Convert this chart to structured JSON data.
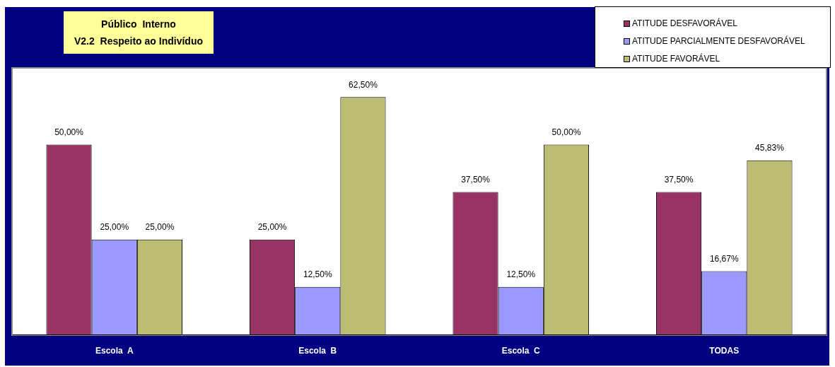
{
  "chart_data": {
    "type": "bar",
    "title": "Público  Interno",
    "subtitle": "V2.2  Respeito ao Indivíduo",
    "categories": [
      "Escola  A",
      "Escola  B",
      "Escola  C",
      "TODAS"
    ],
    "series": [
      {
        "name": "ATITUDE DESFAVORÁVEL",
        "color": "#993366",
        "values": [
          50,
          25,
          37.5,
          37.5
        ],
        "value_labels": [
          "50,00%",
          "25,00%",
          "37,50%",
          "37,50%"
        ]
      },
      {
        "name": "ATITUDE PARCIALMENTE DESFAVORÁVEL",
        "color": "#9999ff",
        "values": [
          25,
          12.5,
          12.5,
          16.67
        ],
        "value_labels": [
          "25,00%",
          "12,50%",
          "12,50%",
          "16,67%"
        ]
      },
      {
        "name": "ATITUDE FAVORÁVEL",
        "color": "#bcbc72",
        "values": [
          25,
          62.5,
          50,
          45.83
        ],
        "value_labels": [
          "25,00%",
          "62,50%",
          "50,00%",
          "45,83%"
        ]
      }
    ],
    "ylim": [
      0,
      70
    ],
    "tick_labels": "x",
    "legend": "top right"
  }
}
